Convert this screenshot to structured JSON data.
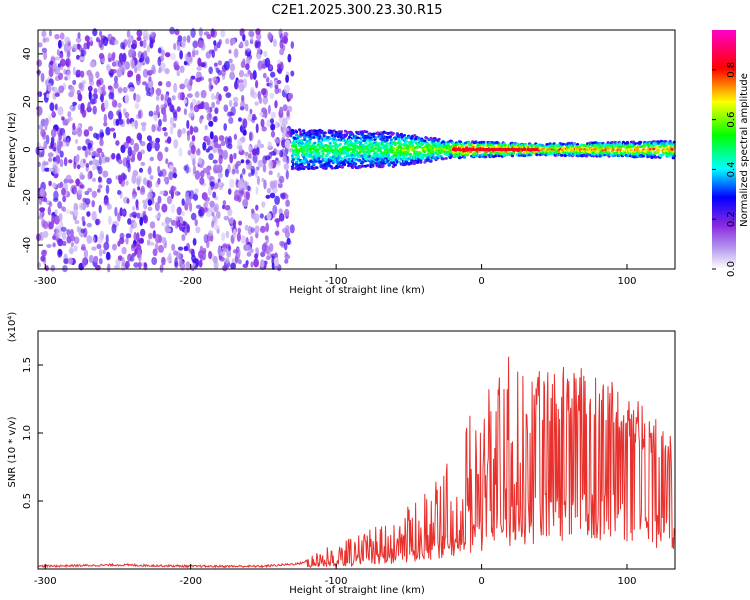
{
  "title": "C2E1.2025.300.23.30.R15",
  "chart_data": [
    {
      "type": "heatmap",
      "title": "C2E1.2025.300.23.30.R15",
      "xlabel": "Height of straight line (km)",
      "ylabel": "Frequency (Hz)",
      "xlim": [
        -305,
        133
      ],
      "ylim": [
        -50,
        50
      ],
      "xticks": [
        -300,
        -200,
        -100,
        0,
        100
      ],
      "xtick_labels": [
        "-300",
        "-200",
        "-100",
        "0",
        "100"
      ],
      "yticks": [
        -40,
        -20,
        0,
        20,
        40
      ],
      "ytick_labels": [
        "-40",
        "-20",
        "0",
        "20",
        "40"
      ],
      "noise_region_x": [
        -305,
        -130
      ],
      "signal_band_half_width_hz": [
        [
          -130,
          7
        ],
        [
          -60,
          6
        ],
        [
          -20,
          3
        ],
        [
          40,
          2
        ],
        [
          133,
          3
        ]
      ],
      "colorbar": {
        "label": "Normalized spectral amplitude",
        "range": [
          0.0,
          0.96
        ],
        "ticks": [
          0.0,
          0.2,
          0.4,
          0.6,
          0.8
        ],
        "tick_labels": [
          "0.0",
          "0.2",
          "0.4",
          "0.6",
          "0.8"
        ],
        "colors": [
          "#ffffff",
          "#8a2be2",
          "#0000ff",
          "#00ffff",
          "#00ff00",
          "#ffff00",
          "#ff0000",
          "#ff00ff"
        ]
      }
    },
    {
      "type": "line",
      "xlabel": "Height of straight line (km)",
      "ylabel": "SNR (10 * v/v)",
      "y_multiplier": "(x10⁴)",
      "xlim": [
        -305,
        133
      ],
      "ylim": [
        0.0,
        1.75
      ],
      "xticks": [
        -300,
        -200,
        -100,
        0,
        100
      ],
      "xtick_labels": [
        "-300",
        "-200",
        "-100",
        "0",
        "100"
      ],
      "yticks": [
        0.5,
        1.0,
        1.5
      ],
      "ytick_labels": [
        "0.5",
        "1.0",
        "1.5"
      ],
      "line_color": "#e8302c",
      "series": [
        {
          "name": "SNR",
          "x": [
            -305,
            -250,
            -200,
            -150,
            -125,
            -115,
            -100,
            -80,
            -60,
            -40,
            -20,
            -10,
            0,
            10,
            20,
            30,
            40,
            50,
            60,
            70,
            80,
            90,
            100,
            110,
            120,
            133
          ],
          "y": [
            0.02,
            0.03,
            0.02,
            0.02,
            0.04,
            0.08,
            0.12,
            0.18,
            0.25,
            0.35,
            0.55,
            0.7,
            0.85,
            0.95,
            1.05,
            1.12,
            1.28,
            1.3,
            1.32,
            1.28,
            1.25,
            1.22,
            1.15,
            1.05,
            0.95,
            0.82
          ]
        }
      ]
    }
  ]
}
